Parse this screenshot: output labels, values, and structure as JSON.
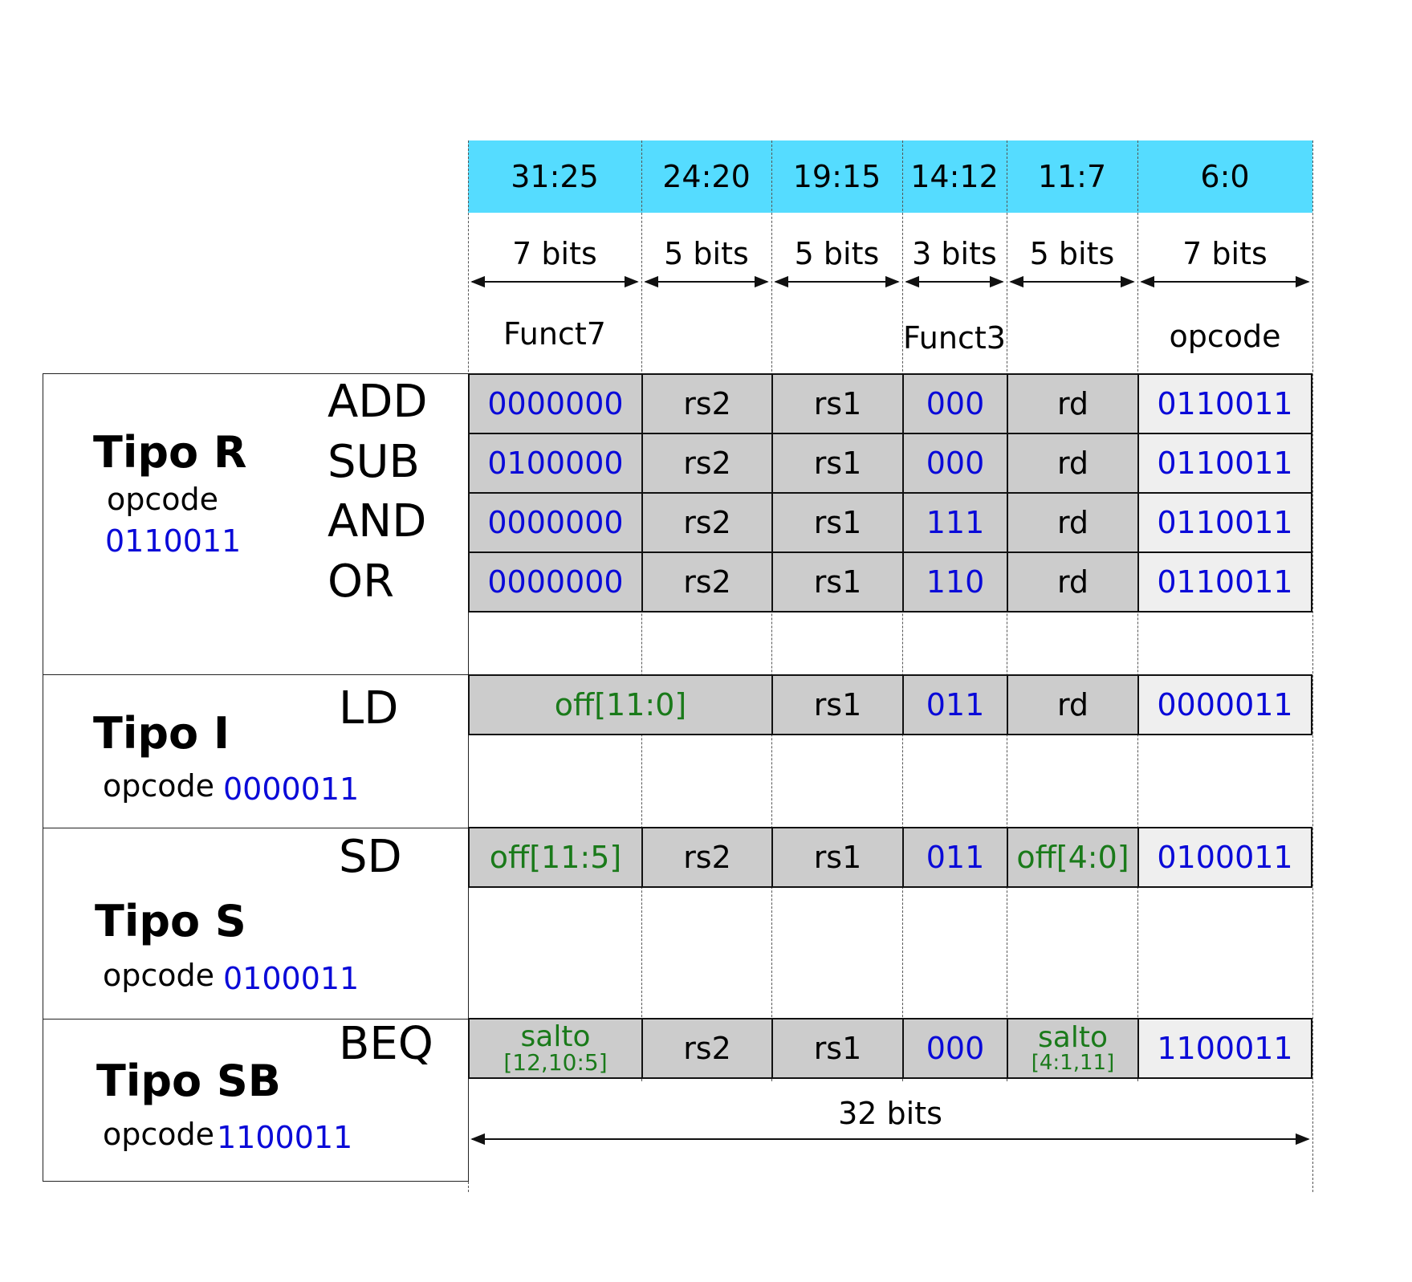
{
  "bit_ranges": [
    "31:25",
    "24:20",
    "19:15",
    "14:12",
    "11:7",
    "6:0"
  ],
  "bit_widths": [
    "7 bits",
    "5 bits",
    "5 bits",
    "3 bits",
    "5 bits",
    "7 bits"
  ],
  "field_names": {
    "funct7": "Funct7",
    "funct3": "Funct3",
    "opcode": "opcode"
  },
  "total_label": "32 bits",
  "colors": {
    "header": "#55dcff",
    "field": "#cccccc",
    "opcode_field": "#efefef",
    "binary": "#0a0ad8",
    "immediate": "#1a7a1a"
  },
  "types": {
    "r": {
      "name": "Tipo R",
      "opcode_label": "opcode",
      "opcode": "0110011",
      "rows": [
        {
          "mnemonic": "ADD",
          "funct7": "0000000",
          "rs2": "rs2",
          "rs1": "rs1",
          "funct3": "000",
          "rd": "rd",
          "opcode": "0110011"
        },
        {
          "mnemonic": "SUB",
          "funct7": "0100000",
          "rs2": "rs2",
          "rs1": "rs1",
          "funct3": "000",
          "rd": "rd",
          "opcode": "0110011"
        },
        {
          "mnemonic": "AND",
          "funct7": "0000000",
          "rs2": "rs2",
          "rs1": "rs1",
          "funct3": "111",
          "rd": "rd",
          "opcode": "0110011"
        },
        {
          "mnemonic": "OR",
          "funct7": "0000000",
          "rs2": "rs2",
          "rs1": "rs1",
          "funct3": "110",
          "rd": "rd",
          "opcode": "0110011"
        }
      ]
    },
    "i": {
      "name": "Tipo I",
      "opcode_label": "opcode",
      "opcode": "0000011",
      "row": {
        "mnemonic": "LD",
        "imm": "off[11:0]",
        "rs1": "rs1",
        "funct3": "011",
        "rd": "rd",
        "opcode": "0000011"
      }
    },
    "s": {
      "name": "Tipo S",
      "opcode_label": "opcode",
      "opcode": "0100011",
      "row": {
        "mnemonic": "SD",
        "imm_hi": "off[11:5]",
        "rs2": "rs2",
        "rs1": "rs1",
        "funct3": "011",
        "imm_lo": "off[4:0]",
        "opcode": "0100011"
      }
    },
    "sb": {
      "name": "Tipo SB",
      "opcode_label": "opcode",
      "opcode": "1100011",
      "row": {
        "mnemonic": "BEQ",
        "imm_hi_word": "salto",
        "imm_hi_bits": "[12,10:5]",
        "rs2": "rs2",
        "rs1": "rs1",
        "funct3": "000",
        "imm_lo_word": "salto",
        "imm_lo_bits": "[4:1,11]",
        "opcode": "1100011"
      }
    }
  }
}
